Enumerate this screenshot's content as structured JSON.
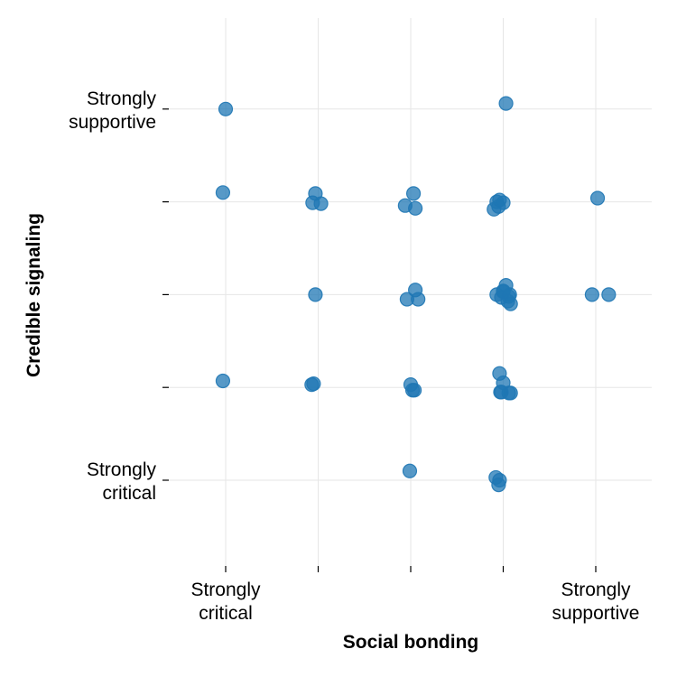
{
  "chart_data": {
    "type": "scatter",
    "xlabel": "Social bonding",
    "ylabel": "Credible signaling",
    "xlim": [
      0.35,
      5.6
    ],
    "ylim": [
      0.35,
      5.6
    ],
    "x_ticks": [
      {
        "value": 1,
        "label": [
          "Strongly",
          "critical"
        ]
      },
      {
        "value": 2,
        "label": []
      },
      {
        "value": 3,
        "label": []
      },
      {
        "value": 4,
        "label": []
      },
      {
        "value": 5,
        "label": [
          "Strongly",
          "supportive"
        ]
      }
    ],
    "y_ticks": [
      {
        "value": 1,
        "label": [
          "Strongly",
          "critical"
        ]
      },
      {
        "value": 2,
        "label": []
      },
      {
        "value": 3,
        "label": []
      },
      {
        "value": 4,
        "label": []
      },
      {
        "value": 5,
        "label": [
          "Strongly",
          "supportive"
        ]
      }
    ],
    "grid": true,
    "colors": {
      "point": "#1f77b4",
      "grid": "#e6e6e6"
    },
    "series": [
      {
        "x": [
          1.0,
          4.03,
          0.97,
          1.97,
          1.94,
          2.03,
          3.03,
          2.94,
          3.05,
          3.93,
          4.0,
          3.95,
          3.9,
          3.96,
          5.02,
          1.97,
          3.05,
          2.96,
          3.08,
          4.03,
          3.93,
          4.0,
          4.06,
          3.98,
          4.07,
          4.05,
          4.0,
          4.08,
          4.96,
          5.14,
          0.97,
          1.93,
          1.95,
          3.0,
          3.02,
          3.04,
          3.96,
          4.0,
          3.98,
          4.06,
          4.08,
          3.97,
          2.99,
          3.92,
          3.96,
          3.95
        ],
        "y": [
          5.0,
          5.06,
          4.1,
          4.09,
          3.99,
          3.98,
          4.09,
          3.96,
          3.93,
          4.0,
          3.99,
          3.95,
          3.92,
          4.02,
          4.04,
          3.0,
          3.05,
          2.95,
          2.95,
          3.1,
          3.0,
          3.04,
          2.98,
          2.97,
          3.0,
          2.93,
          3.03,
          2.9,
          3.0,
          3.0,
          2.07,
          2.03,
          2.04,
          2.03,
          1.97,
          1.97,
          2.15,
          2.05,
          1.95,
          1.94,
          1.94,
          1.95,
          1.1,
          1.03,
          1.0,
          0.95
        ]
      }
    ]
  }
}
